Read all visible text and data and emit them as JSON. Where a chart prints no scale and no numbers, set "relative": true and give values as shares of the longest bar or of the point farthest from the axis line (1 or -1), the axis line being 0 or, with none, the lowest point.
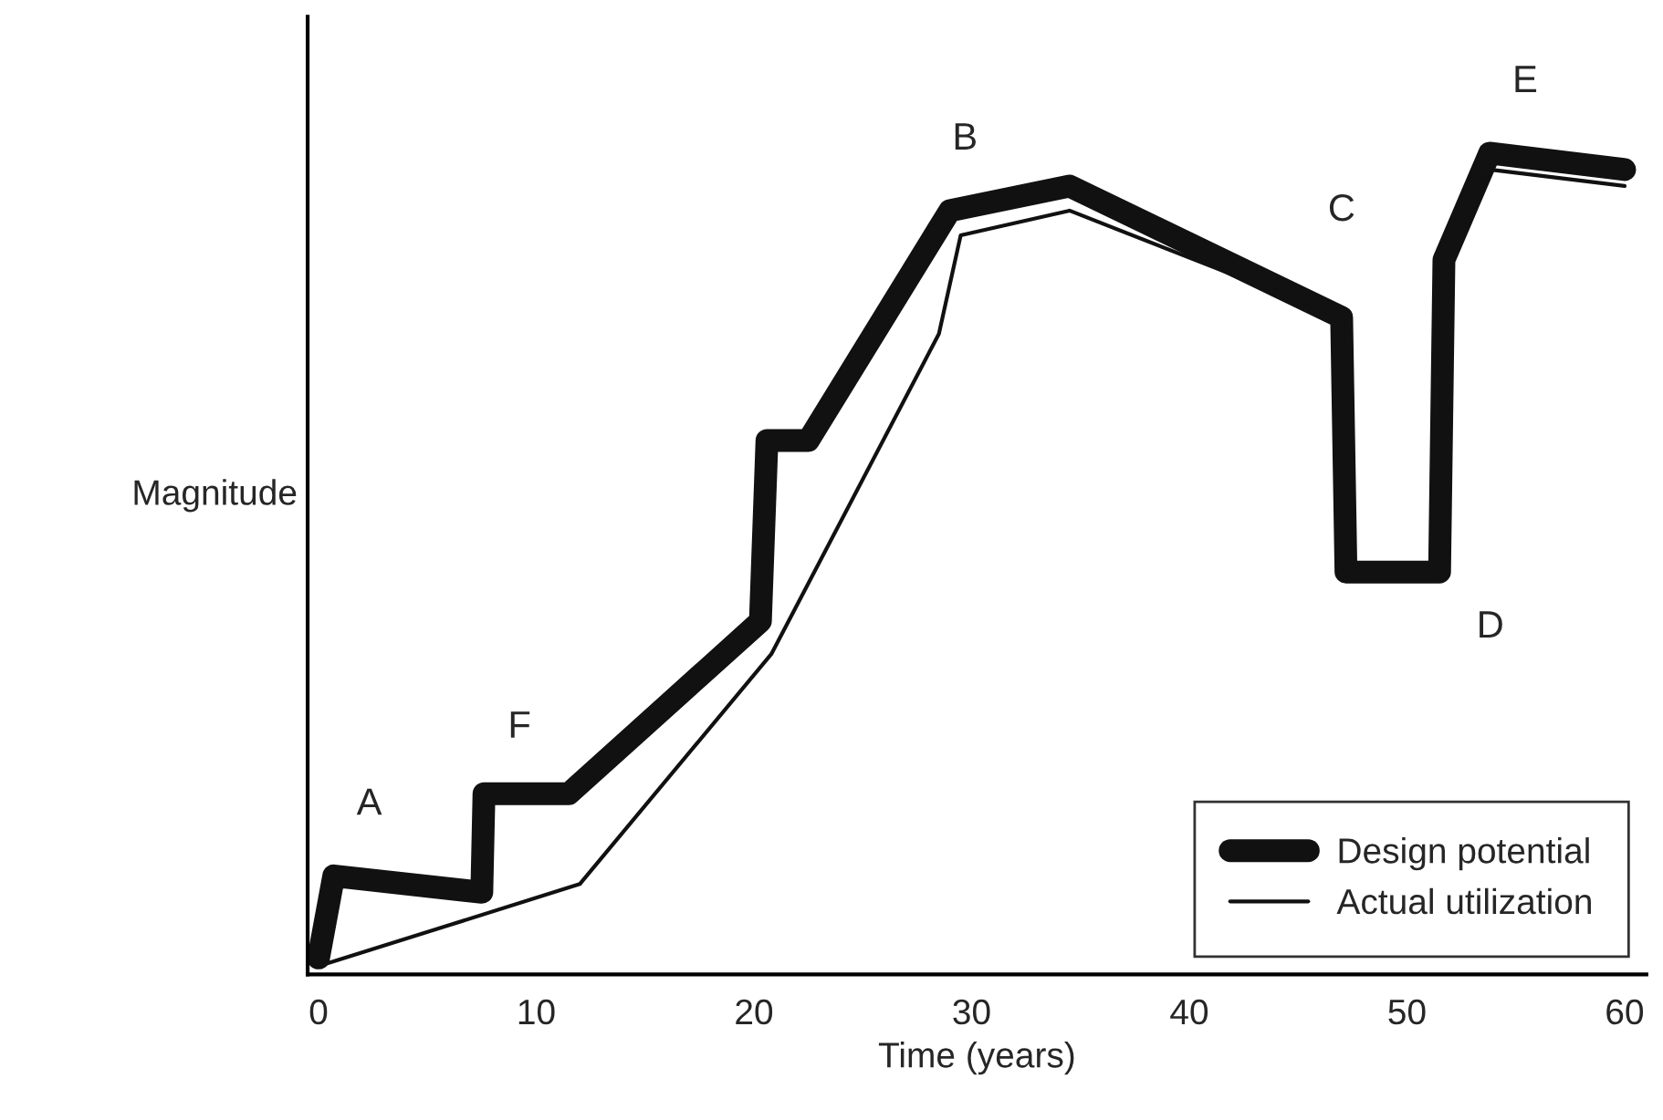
{
  "chart_data": {
    "type": "line",
    "relative": true,
    "xlabel": "Time (years)",
    "ylabel": "Magnitude",
    "xlim": [
      -0.5,
      61
    ],
    "xticks": [
      0,
      10,
      20,
      30,
      40,
      50,
      60
    ],
    "legend": "bottom right",
    "grid": false,
    "marker": "none",
    "line_style": "solid",
    "series": [
      {
        "name": "Design potential",
        "color": "#111111",
        "x": [
          0,
          0.7,
          7.5,
          7.6,
          11.5,
          20.3,
          20.6,
          22.5,
          29,
          34.5,
          47,
          47.2,
          51.5,
          51.7,
          53.8,
          60
        ],
        "values": [
          0.02,
          0.12,
          0.1,
          0.22,
          0.22,
          0.43,
          0.65,
          0.65,
          0.93,
          0.96,
          0.8,
          0.49,
          0.49,
          0.87,
          1.0,
          0.98
        ]
      },
      {
        "name": "Actual utilization",
        "color": "#111111",
        "x": [
          0,
          12,
          20.8,
          28.5,
          29.5,
          34.5,
          47,
          47.2,
          51.5,
          51.7,
          53.8,
          60
        ],
        "values": [
          0.01,
          0.11,
          0.39,
          0.78,
          0.9,
          0.93,
          0.8,
          0.49,
          0.49,
          0.87,
          0.98,
          0.96
        ]
      }
    ],
    "annotations": [
      {
        "text": "A",
        "x": 0.7,
        "y": 0.12
      },
      {
        "text": "F",
        "x": 7.6,
        "y": 0.22
      },
      {
        "text": "B",
        "x": 29,
        "y": 0.93
      },
      {
        "text": "C",
        "x": 47,
        "y": 0.8
      },
      {
        "text": "D",
        "x": 51.5,
        "y": 0.49
      },
      {
        "text": "E",
        "x": 53.8,
        "y": 1.0
      }
    ]
  }
}
